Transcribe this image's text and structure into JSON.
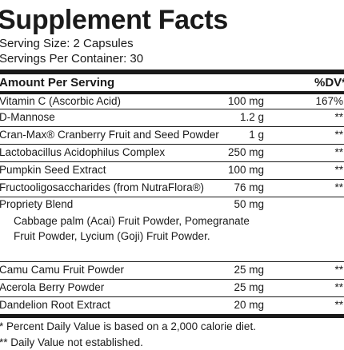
{
  "title": "Supplement Facts",
  "serving_size": "Serving Size: 2 Capsules",
  "servings_per_container": "Servings Per Container: 30",
  "table_header": {
    "amount": "Amount Per Serving",
    "dv": "%DV*"
  },
  "rows": [
    {
      "name": "Vitamin C (Ascorbic Acid)",
      "amount": "100 mg",
      "dv": "167%"
    },
    {
      "name": "D-Mannose",
      "amount": "1.2 g",
      "dv": "**"
    },
    {
      "name": "Cran-Max® Cranberry Fruit and Seed Powder",
      "amount": "1 g",
      "dv": "**"
    },
    {
      "name": "Lactobacillus Acidophilus Complex",
      "amount": "250 mg",
      "dv": "**"
    },
    {
      "name": "Pumpkin Seed Extract",
      "amount": "100 mg",
      "dv": "**"
    },
    {
      "name": "Fructooligosaccharides (from NutraFlora®)",
      "amount": "76 mg",
      "dv": "**"
    },
    {
      "name": "Propriety Blend",
      "amount": "50 mg",
      "dv": "",
      "sub": "Cabbage palm (Acai) Fruit Powder, Pomegranate Fruit Powder, Lycium (Goji) Fruit Powder."
    },
    {
      "name": "Camu Camu Fruit Powder",
      "amount": "25 mg",
      "dv": "**"
    },
    {
      "name": "Acerola Berry Powder",
      "amount": "25 mg",
      "dv": "**"
    },
    {
      "name": "Dandelion Root Extract",
      "amount": "20 mg",
      "dv": "**"
    }
  ],
  "footnotes": [
    "* Percent Daily Value is based on a 2,000 calorie diet.",
    "** Daily Value not established."
  ]
}
